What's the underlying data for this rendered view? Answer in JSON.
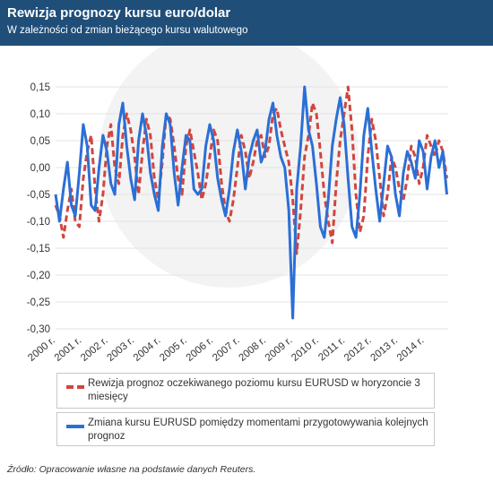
{
  "header": {
    "title": "Rewizja prognozy kursu euro/dolar",
    "subtitle": "W zależności od zmian bieżącego kursu walutowego"
  },
  "source": "Źródło: Opracowanie własne na podstawie danych Reuters.",
  "colors": {
    "header_bg": "#1f4e79",
    "series_forecast": "#d0463f",
    "series_spot": "#2b6fd6",
    "grid": "#e3e3e3"
  },
  "chart_data": {
    "type": "line",
    "title": "Rewizja prognozy kursu euro/dolar",
    "subtitle": "W zależności od zmian bieżącego kursu walutowego",
    "xlabel": "",
    "ylabel": "",
    "xlim": [
      2000.0,
      2014.9
    ],
    "ylim": [
      -0.3,
      0.15
    ],
    "grid": true,
    "legend_position": "bottom",
    "y_ticks": [
      0.15,
      0.1,
      0.05,
      0.0,
      -0.05,
      -0.1,
      -0.15,
      -0.2,
      -0.25,
      -0.3
    ],
    "y_tick_labels": [
      "0,15",
      "0,10",
      "0,05",
      "0,00",
      "-0,05",
      "-0,10",
      "-0,15",
      "-0,20",
      "-0,25",
      "-0,30"
    ],
    "x_ticks": [
      2000,
      2001,
      2002,
      2003,
      2004,
      2005,
      2006,
      2007,
      2008,
      2009,
      2010,
      2011,
      2012,
      2013,
      2014
    ],
    "x_tick_labels": [
      "2000 r.",
      "2001 r.",
      "2002 r.",
      "2003 r.",
      "2004 r.",
      "2005 r.",
      "2006 r.",
      "2007 r.",
      "2008 r.",
      "2009 r.",
      "2010 r.",
      "2011 r.",
      "2012 r.",
      "2013 r.",
      "2014 r."
    ],
    "series": [
      {
        "name": "Rewizja prognoz oczekiwanego poziomu kursu EURUSD w horyzoncie 3 miesięcy",
        "style": "dashed",
        "color": "#d0463f",
        "x": [
          2000.0,
          2000.15,
          2000.3,
          2000.45,
          2000.6,
          2000.75,
          2000.9,
          2001.05,
          2001.2,
          2001.35,
          2001.5,
          2001.65,
          2001.8,
          2001.95,
          2002.1,
          2002.25,
          2002.4,
          2002.55,
          2002.7,
          2002.85,
          2003.0,
          2003.15,
          2003.3,
          2003.45,
          2003.6,
          2003.75,
          2003.9,
          2004.05,
          2004.2,
          2004.35,
          2004.5,
          2004.65,
          2004.8,
          2004.95,
          2005.1,
          2005.25,
          2005.4,
          2005.55,
          2005.7,
          2005.85,
          2006.0,
          2006.15,
          2006.3,
          2006.45,
          2006.6,
          2006.75,
          2006.9,
          2007.05,
          2007.2,
          2007.35,
          2007.5,
          2007.65,
          2007.8,
          2007.95,
          2008.1,
          2008.25,
          2008.4,
          2008.55,
          2008.7,
          2008.85,
          2009.0,
          2009.15,
          2009.3,
          2009.45,
          2009.6,
          2009.75,
          2009.9,
          2010.05,
          2010.2,
          2010.35,
          2010.5,
          2010.65,
          2010.8,
          2010.95,
          2011.1,
          2011.25,
          2011.4,
          2011.55,
          2011.7,
          2011.85,
          2012.0,
          2012.15,
          2012.3,
          2012.45,
          2012.6,
          2012.75,
          2012.9,
          2013.05,
          2013.2,
          2013.35,
          2013.5,
          2013.65,
          2013.8,
          2013.95,
          2014.1,
          2014.25,
          2014.4,
          2014.55,
          2014.7,
          2014.85
        ],
        "y": [
          -0.07,
          -0.09,
          -0.13,
          -0.08,
          -0.04,
          -0.1,
          -0.11,
          -0.02,
          0.03,
          0.06,
          -0.04,
          -0.1,
          -0.05,
          0.04,
          0.08,
          0.0,
          -0.03,
          0.06,
          0.1,
          0.07,
          0.02,
          -0.05,
          0.03,
          0.09,
          0.06,
          -0.02,
          -0.06,
          0.01,
          0.1,
          0.09,
          0.04,
          -0.02,
          -0.05,
          0.04,
          0.07,
          0.03,
          -0.01,
          -0.06,
          -0.03,
          0.02,
          0.07,
          0.05,
          -0.03,
          -0.08,
          -0.1,
          -0.06,
          0.0,
          0.06,
          0.03,
          -0.02,
          0.01,
          0.05,
          0.06,
          0.02,
          0.04,
          0.1,
          0.11,
          0.07,
          0.04,
          0.01,
          -0.06,
          -0.16,
          -0.08,
          0.02,
          0.06,
          0.12,
          0.1,
          0.03,
          -0.05,
          -0.1,
          -0.14,
          -0.03,
          0.05,
          0.1,
          0.15,
          0.07,
          -0.05,
          -0.12,
          -0.09,
          0.02,
          0.09,
          0.05,
          -0.02,
          -0.09,
          -0.05,
          0.02,
          0.0,
          -0.04,
          -0.06,
          -0.02,
          0.04,
          0.02,
          -0.03,
          0.0,
          0.06,
          0.04,
          0.02,
          0.05,
          0.03,
          -0.02
        ]
      },
      {
        "name": "Zmiana kursu EURUSD pomiędzy momentami przygotowywania kolejnych prognoz",
        "style": "solid",
        "color": "#2b6fd6",
        "x": [
          2000.0,
          2000.15,
          2000.3,
          2000.45,
          2000.6,
          2000.75,
          2000.9,
          2001.05,
          2001.2,
          2001.35,
          2001.5,
          2001.65,
          2001.8,
          2001.95,
          2002.1,
          2002.25,
          2002.4,
          2002.55,
          2002.7,
          2002.85,
          2003.0,
          2003.15,
          2003.3,
          2003.45,
          2003.6,
          2003.75,
          2003.9,
          2004.05,
          2004.2,
          2004.35,
          2004.5,
          2004.65,
          2004.8,
          2004.95,
          2005.1,
          2005.25,
          2005.4,
          2005.55,
          2005.7,
          2005.85,
          2006.0,
          2006.15,
          2006.3,
          2006.45,
          2006.6,
          2006.75,
          2006.9,
          2007.05,
          2007.2,
          2007.35,
          2007.5,
          2007.65,
          2007.8,
          2007.95,
          2008.1,
          2008.25,
          2008.4,
          2008.55,
          2008.7,
          2008.85,
          2009.0,
          2009.15,
          2009.3,
          2009.45,
          2009.6,
          2009.75,
          2009.9,
          2010.05,
          2010.2,
          2010.35,
          2010.5,
          2010.65,
          2010.8,
          2010.95,
          2011.1,
          2011.25,
          2011.4,
          2011.55,
          2011.7,
          2011.85,
          2012.0,
          2012.15,
          2012.3,
          2012.45,
          2012.6,
          2012.75,
          2012.9,
          2013.05,
          2013.2,
          2013.35,
          2013.5,
          2013.65,
          2013.8,
          2013.95,
          2014.1,
          2014.25,
          2014.4,
          2014.55,
          2014.7,
          2014.85
        ],
        "y": [
          -0.05,
          -0.1,
          -0.04,
          0.01,
          -0.07,
          -0.09,
          -0.01,
          0.08,
          0.04,
          -0.07,
          -0.08,
          0.0,
          0.06,
          0.03,
          -0.03,
          -0.05,
          0.08,
          0.12,
          0.04,
          -0.02,
          -0.06,
          0.05,
          0.1,
          0.06,
          -0.01,
          -0.05,
          -0.08,
          0.04,
          0.1,
          0.08,
          -0.01,
          -0.07,
          0.0,
          0.06,
          0.05,
          -0.04,
          -0.05,
          -0.04,
          0.04,
          0.08,
          0.05,
          -0.02,
          -0.06,
          -0.09,
          -0.04,
          0.03,
          0.07,
          0.03,
          -0.04,
          0.02,
          0.05,
          0.07,
          0.01,
          0.03,
          0.09,
          0.12,
          0.06,
          0.02,
          0.0,
          -0.08,
          -0.28,
          -0.04,
          0.04,
          0.15,
          0.07,
          0.04,
          -0.03,
          -0.11,
          -0.13,
          -0.06,
          0.04,
          0.09,
          0.13,
          0.08,
          -0.02,
          -0.11,
          -0.13,
          -0.05,
          0.06,
          0.11,
          0.03,
          -0.04,
          -0.1,
          -0.03,
          0.04,
          0.02,
          -0.05,
          -0.09,
          -0.01,
          0.03,
          0.01,
          -0.02,
          0.05,
          0.03,
          -0.04,
          0.02,
          0.05,
          0.0,
          0.03,
          -0.05
        ]
      }
    ]
  }
}
